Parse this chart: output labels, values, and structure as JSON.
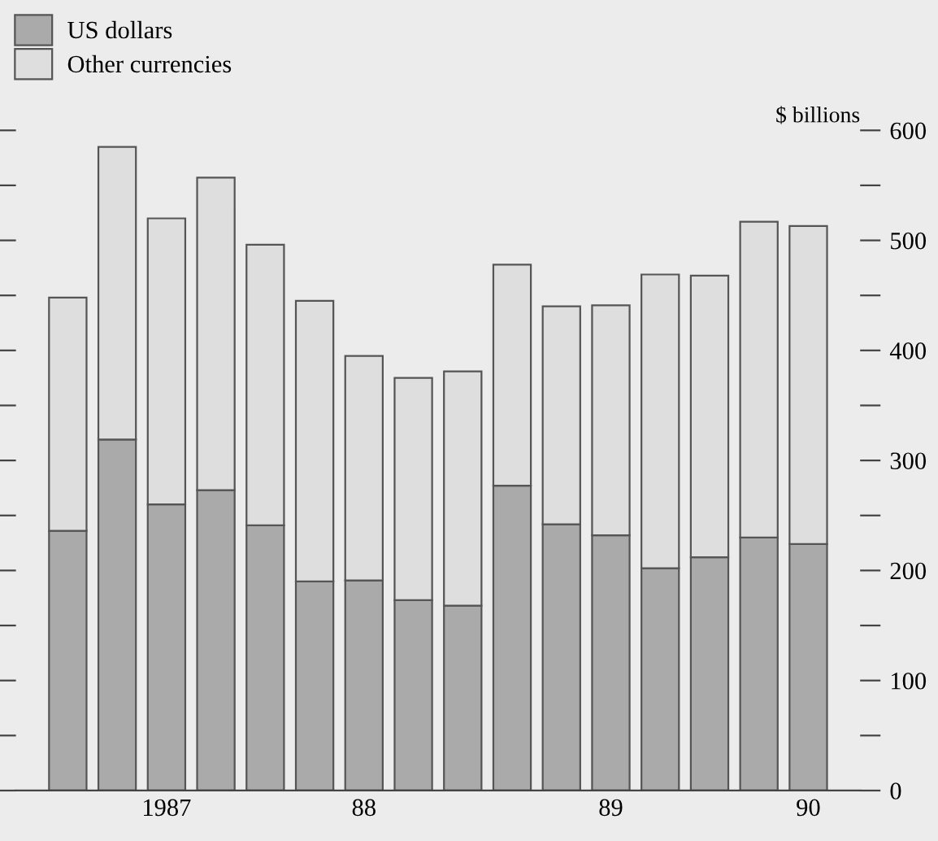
{
  "chart_data": {
    "type": "bar",
    "stacked": true,
    "ylabel": "$ billions",
    "categories": [
      null,
      null,
      "1987",
      null,
      null,
      null,
      "88",
      null,
      null,
      null,
      null,
      "89",
      null,
      null,
      null,
      "90"
    ],
    "series": [
      {
        "name": "US dollars",
        "color": "#aaaaaa",
        "values": [
          236,
          319,
          260,
          273,
          241,
          190,
          191,
          173,
          168,
          277,
          242,
          232,
          202,
          212,
          230,
          224
        ]
      },
      {
        "name": "Other currencies",
        "color": "#dedede",
        "values": [
          212,
          266,
          260,
          284,
          255,
          255,
          204,
          202,
          213,
          201,
          198,
          209,
          267,
          256,
          287,
          289
        ]
      }
    ],
    "ylim": [
      0,
      600
    ],
    "yticks": [
      0,
      {
        "value": 50,
        "label": null
      },
      100,
      {
        "value": 150,
        "label": null
      },
      200,
      {
        "value": 250,
        "label": null
      },
      300,
      {
        "value": 350,
        "label": null
      },
      400,
      {
        "value": 450,
        "label": null
      },
      500,
      {
        "value": 550,
        "label": null
      },
      600
    ],
    "legend": "top left",
    "grid": false
  }
}
